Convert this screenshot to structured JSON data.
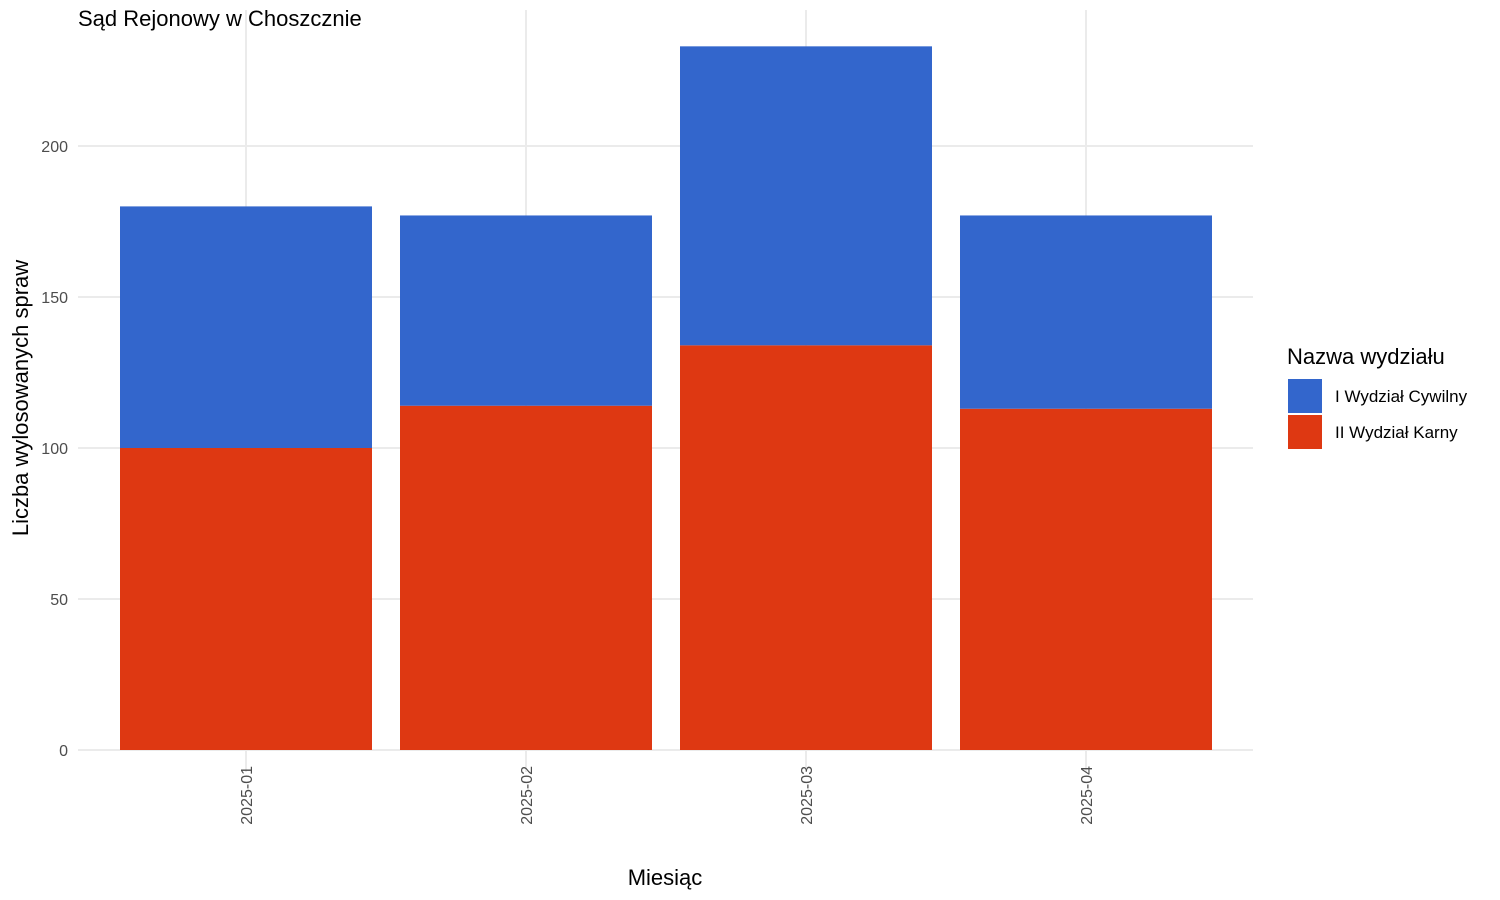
{
  "chart_data": {
    "type": "bar",
    "stacked": true,
    "title": "Sąd Rejonowy w Choszcznie",
    "xlabel": "Miesiąc",
    "ylabel": "Liczba wylosowanych spraw",
    "categories": [
      "2025-01",
      "2025-02",
      "2025-03",
      "2025-04"
    ],
    "series": [
      {
        "name": "II Wydział Karny",
        "color": "#de3812",
        "values": [
          100,
          114,
          134,
          113
        ]
      },
      {
        "name": "I Wydział Cywilny",
        "color": "#3366cc",
        "values": [
          80,
          63,
          99,
          64
        ]
      }
    ],
    "ylim": [
      0,
      240
    ],
    "yticks": [
      0,
      50,
      100,
      150,
      200
    ],
    "grid": true,
    "legend": {
      "title": "Nazwa wydziału",
      "position": "right",
      "items": [
        {
          "label": "I Wydział Cywilny",
          "color": "#3366cc"
        },
        {
          "label": "II Wydział Karny",
          "color": "#de3812"
        }
      ]
    }
  }
}
